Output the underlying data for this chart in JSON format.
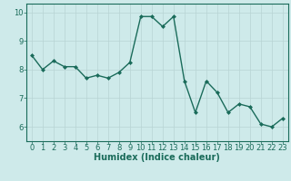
{
  "x": [
    0,
    1,
    2,
    3,
    4,
    5,
    6,
    7,
    8,
    9,
    10,
    11,
    12,
    13,
    14,
    15,
    16,
    17,
    18,
    19,
    20,
    21,
    22,
    23
  ],
  "y": [
    8.5,
    8.0,
    8.3,
    8.1,
    8.1,
    7.7,
    7.8,
    7.7,
    7.9,
    8.25,
    9.85,
    9.85,
    9.5,
    9.85,
    7.6,
    6.5,
    7.6,
    7.2,
    6.5,
    6.8,
    6.7,
    6.1,
    6.0,
    6.3
  ],
  "line_color": "#1a6b5a",
  "marker": "D",
  "marker_size": 2.0,
  "bg_color": "#ceeaea",
  "grid_color": "#b8d4d4",
  "xlabel": "Humidex (Indice chaleur)",
  "ylabel": "",
  "title": "",
  "xlim": [
    -0.5,
    23.5
  ],
  "ylim": [
    5.5,
    10.3
  ],
  "yticks": [
    6,
    7,
    8,
    9,
    10
  ],
  "xticks": [
    0,
    1,
    2,
    3,
    4,
    5,
    6,
    7,
    8,
    9,
    10,
    11,
    12,
    13,
    14,
    15,
    16,
    17,
    18,
    19,
    20,
    21,
    22,
    23
  ],
  "xlabel_fontsize": 7,
  "tick_fontsize": 6,
  "linewidth": 1.0
}
